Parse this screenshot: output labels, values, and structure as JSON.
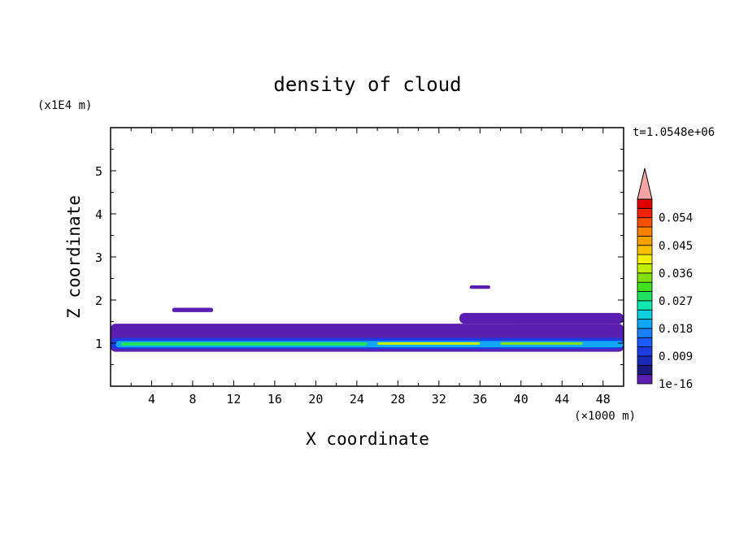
{
  "chart_data": {
    "type": "contour",
    "title": "density of cloud",
    "xlabel": "X coordinate",
    "ylabel": "Z coordinate",
    "x_unit": "(×1000 m)",
    "y_unit": "(x1E4 m)",
    "time_label": "t=1.0548e+06",
    "xlim": [
      0,
      50
    ],
    "ylim": [
      0,
      6
    ],
    "x_ticks": [
      4,
      8,
      12,
      16,
      20,
      24,
      28,
      32,
      36,
      40,
      44,
      48
    ],
    "y_ticks": [
      1,
      2,
      3,
      4,
      5
    ],
    "colorbar": {
      "levels": [
        1e-16,
        0.003,
        0.006,
        0.009,
        0.012,
        0.015,
        0.018,
        0.021,
        0.024,
        0.027,
        0.03,
        0.033,
        0.036,
        0.039,
        0.042,
        0.045,
        0.048,
        0.051,
        0.054,
        0.057,
        0.06
      ],
      "tick_labels": [
        "1e-16",
        "0.009",
        "0.018",
        "0.027",
        "0.036",
        "0.045",
        "0.054"
      ],
      "colors": [
        "#5a1fb0",
        "#1a1a80",
        "#1a2ab8",
        "#1a3ce0",
        "#1a5aff",
        "#1a80ff",
        "#10a8ff",
        "#10d0e0",
        "#10e8b0",
        "#20e060",
        "#40e020",
        "#80e010",
        "#c0f000",
        "#f0f000",
        "#f8c000",
        "#f8a000",
        "#f88000",
        "#f85000",
        "#f02000",
        "#e00000"
      ],
      "extend_color": "#f4a4a4"
    },
    "regions": [
      {
        "level": 0,
        "x": [
          0,
          50
        ],
        "z": [
          0.8,
          1.45
        ]
      },
      {
        "level": 0,
        "x": [
          6,
          10
        ],
        "z": [
          1.72,
          1.82
        ]
      },
      {
        "level": 0,
        "x": [
          35,
          37
        ],
        "z": [
          2.26,
          2.34
        ]
      },
      {
        "level": 0,
        "x": [
          34,
          50
        ],
        "z": [
          1.45,
          1.7
        ]
      },
      {
        "level": 3,
        "x": [
          0,
          50
        ],
        "z": [
          0.86,
          1.12
        ]
      },
      {
        "level": 6,
        "x": [
          0.5,
          50
        ],
        "z": [
          0.9,
          1.05
        ]
      },
      {
        "level": 9,
        "x": [
          1,
          25
        ],
        "z": [
          0.94,
          1.02
        ]
      },
      {
        "level": 12,
        "x": [
          26,
          36
        ],
        "z": [
          0.96,
          1.02
        ]
      },
      {
        "level": 11,
        "x": [
          38,
          46
        ],
        "z": [
          0.96,
          1.02
        ]
      }
    ]
  },
  "colors": {
    "background": "#ffffff",
    "axes": "#000000"
  }
}
